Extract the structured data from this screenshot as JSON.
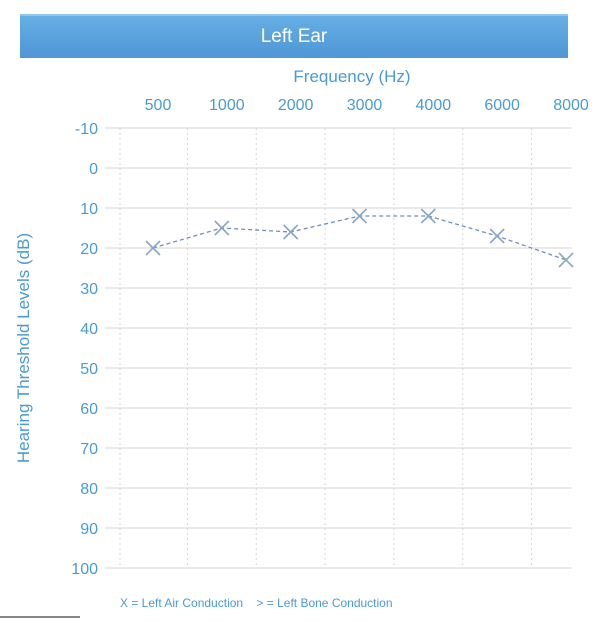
{
  "chart_data": {
    "type": "line",
    "title": "Left Ear",
    "xlabel": "Frequency (Hz)",
    "ylabel": "Hearing Threshold Levels (dB)",
    "categories": [
      "500",
      "1000",
      "2000",
      "3000",
      "4000",
      "6000",
      "8000"
    ],
    "y_ticks": [
      "-10",
      "0",
      "10",
      "20",
      "30",
      "40",
      "50",
      "60",
      "70",
      "80",
      "90",
      "100"
    ],
    "ylim": [
      -10,
      100
    ],
    "y_inverted": true,
    "grid": true,
    "series": [
      {
        "marker": "x",
        "line_style": "dashed",
        "values": [
          20,
          15,
          16,
          12,
          12,
          17,
          23
        ]
      }
    ],
    "legend": {
      "items": [
        "X = Left Air Conduction",
        "> = Left Bone Conduction"
      ]
    }
  },
  "colors": {
    "banner": "#5aa3dd",
    "text": "#4a9ad8",
    "marker": "#8aa6c8",
    "line": "#6f8fbf",
    "grid": "#d6d6d6"
  }
}
